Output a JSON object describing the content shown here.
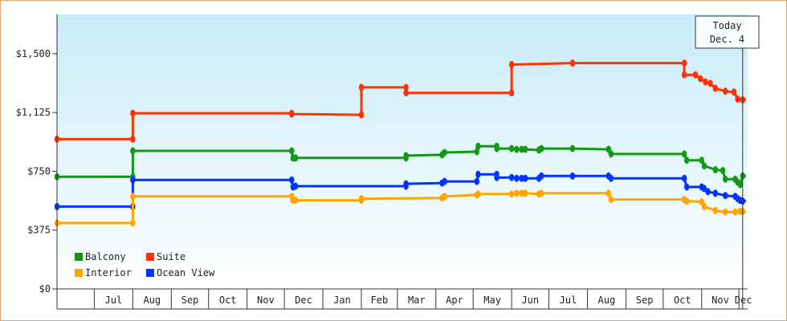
{
  "chart_data": {
    "type": "line",
    "title": "",
    "xlabel": "",
    "ylabel": "",
    "ylim": [
      0,
      1750
    ],
    "y_ticks": [
      0,
      375,
      750,
      1125,
      1500
    ],
    "y_tick_labels": [
      "$0",
      "$375",
      "$750",
      "$1,125",
      "$1,500"
    ],
    "x_range": [
      "2015-06-01",
      "2016-12-08"
    ],
    "x_ticks": [
      {
        "label": "Jul",
        "start": "2015-07-01",
        "end": "2015-08-01"
      },
      {
        "label": "Aug",
        "start": "2015-08-01",
        "end": "2015-09-01"
      },
      {
        "label": "Sep",
        "start": "2015-09-01",
        "end": "2015-10-01"
      },
      {
        "label": "Oct",
        "start": "2015-10-01",
        "end": "2015-11-01"
      },
      {
        "label": "Nov",
        "start": "2015-11-01",
        "end": "2015-12-01"
      },
      {
        "label": "Dec",
        "start": "2015-12-01",
        "end": "2016-01-01"
      },
      {
        "label": "Jan",
        "start": "2016-01-01",
        "end": "2016-02-01"
      },
      {
        "label": "Feb",
        "start": "2016-02-01",
        "end": "2016-03-01"
      },
      {
        "label": "Mar",
        "start": "2016-03-01",
        "end": "2016-04-01"
      },
      {
        "label": "Apr",
        "start": "2016-04-01",
        "end": "2016-05-01"
      },
      {
        "label": "May",
        "start": "2016-05-01",
        "end": "2016-06-01"
      },
      {
        "label": "Jun",
        "start": "2016-06-01",
        "end": "2016-07-01"
      },
      {
        "label": "Jul",
        "start": "2016-07-01",
        "end": "2016-08-01"
      },
      {
        "label": "Aug",
        "start": "2016-08-01",
        "end": "2016-09-01"
      },
      {
        "label": "Sep",
        "start": "2016-09-01",
        "end": "2016-10-01"
      },
      {
        "label": "Oct",
        "start": "2016-10-01",
        "end": "2016-11-01"
      },
      {
        "label": "Nov",
        "start": "2016-11-01",
        "end": "2016-12-01"
      },
      {
        "label": "Dec",
        "start": "2016-12-01",
        "end": "2016-12-08"
      }
    ],
    "today": {
      "date": "2016-12-04",
      "label_line1": "Today",
      "label_line2": "Dec. 4"
    },
    "forecast_end": "2016-12-08",
    "grid": false,
    "legend_position": "bottom-left",
    "colors": {
      "background_top": "#c8ecf9",
      "background_bottom": "#ffffff",
      "axis": "#333333",
      "frame": "#e3a868"
    },
    "series": [
      {
        "name": "Suite",
        "color": "#ff3300",
        "points": [
          [
            "2015-06-01",
            955
          ],
          [
            "2015-08-01",
            955
          ],
          [
            "2015-08-01",
            1120
          ],
          [
            "2015-12-07",
            1120
          ],
          [
            "2015-12-07",
            1115
          ],
          [
            "2016-02-01",
            1110
          ],
          [
            "2016-02-01",
            1285
          ],
          [
            "2016-03-08",
            1285
          ],
          [
            "2016-03-08",
            1250
          ],
          [
            "2016-06-01",
            1250
          ],
          [
            "2016-06-01",
            1430
          ],
          [
            "2016-07-20",
            1440
          ],
          [
            "2016-10-18",
            1440
          ],
          [
            "2016-10-18",
            1365
          ],
          [
            "2016-10-27",
            1365
          ],
          [
            "2016-10-31",
            1340
          ],
          [
            "2016-11-04",
            1320
          ],
          [
            "2016-11-08",
            1310
          ],
          [
            "2016-11-12",
            1280
          ],
          [
            "2016-11-20",
            1260
          ],
          [
            "2016-11-27",
            1255
          ],
          [
            "2016-11-30",
            1210
          ],
          [
            "2016-12-04",
            1205
          ]
        ],
        "forecast": 1210
      },
      {
        "name": "Balcony",
        "color": "#119911",
        "points": [
          [
            "2015-06-01",
            715
          ],
          [
            "2015-08-01",
            715
          ],
          [
            "2015-08-01",
            880
          ],
          [
            "2015-12-07",
            880
          ],
          [
            "2015-12-08",
            835
          ],
          [
            "2015-12-10",
            835
          ],
          [
            "2016-03-08",
            835
          ],
          [
            "2016-03-08",
            850
          ],
          [
            "2016-04-06",
            855
          ],
          [
            "2016-04-08",
            870
          ],
          [
            "2016-05-04",
            875
          ],
          [
            "2016-05-05",
            910
          ],
          [
            "2016-05-20",
            910
          ],
          [
            "2016-05-20",
            895
          ],
          [
            "2016-06-01",
            895
          ],
          [
            "2016-06-05",
            890
          ],
          [
            "2016-06-09",
            890
          ],
          [
            "2016-06-12",
            890
          ],
          [
            "2016-06-23",
            885
          ],
          [
            "2016-06-25",
            895
          ],
          [
            "2016-07-20",
            895
          ],
          [
            "2016-08-18",
            890
          ],
          [
            "2016-08-20",
            860
          ],
          [
            "2016-10-18",
            860
          ],
          [
            "2016-10-20",
            820
          ],
          [
            "2016-11-01",
            820
          ],
          [
            "2016-11-03",
            785
          ],
          [
            "2016-11-12",
            760
          ],
          [
            "2016-11-18",
            755
          ],
          [
            "2016-11-20",
            700
          ],
          [
            "2016-11-28",
            700
          ],
          [
            "2016-11-30",
            680
          ],
          [
            "2016-12-02",
            665
          ],
          [
            "2016-12-04",
            720
          ]
        ],
        "forecast": 720
      },
      {
        "name": "Ocean View",
        "color": "#0033ff",
        "points": [
          [
            "2015-06-01",
            525
          ],
          [
            "2015-08-01",
            525
          ],
          [
            "2015-08-01",
            695
          ],
          [
            "2015-12-07",
            695
          ],
          [
            "2015-12-08",
            650
          ],
          [
            "2015-12-10",
            655
          ],
          [
            "2016-03-08",
            655
          ],
          [
            "2016-03-08",
            670
          ],
          [
            "2016-04-06",
            675
          ],
          [
            "2016-04-08",
            685
          ],
          [
            "2016-05-04",
            685
          ],
          [
            "2016-05-05",
            730
          ],
          [
            "2016-05-20",
            730
          ],
          [
            "2016-05-20",
            710
          ],
          [
            "2016-06-01",
            710
          ],
          [
            "2016-06-05",
            705
          ],
          [
            "2016-06-09",
            705
          ],
          [
            "2016-06-12",
            705
          ],
          [
            "2016-06-23",
            705
          ],
          [
            "2016-06-25",
            720
          ],
          [
            "2016-07-20",
            720
          ],
          [
            "2016-08-18",
            720
          ],
          [
            "2016-08-20",
            705
          ],
          [
            "2016-10-18",
            705
          ],
          [
            "2016-10-20",
            650
          ],
          [
            "2016-11-01",
            650
          ],
          [
            "2016-11-03",
            640
          ],
          [
            "2016-11-06",
            620
          ],
          [
            "2016-11-12",
            610
          ],
          [
            "2016-11-20",
            595
          ],
          [
            "2016-11-28",
            590
          ],
          [
            "2016-11-30",
            575
          ],
          [
            "2016-12-02",
            565
          ],
          [
            "2016-12-04",
            560
          ]
        ],
        "forecast": 560
      },
      {
        "name": "Interior",
        "color": "#ffa500",
        "points": [
          [
            "2015-06-01",
            420
          ],
          [
            "2015-08-01",
            420
          ],
          [
            "2015-08-01",
            590
          ],
          [
            "2015-12-07",
            590
          ],
          [
            "2015-12-08",
            565
          ],
          [
            "2015-12-10",
            565
          ],
          [
            "2016-02-01",
            565
          ],
          [
            "2016-02-01",
            575
          ],
          [
            "2016-04-06",
            580
          ],
          [
            "2016-04-08",
            590
          ],
          [
            "2016-05-04",
            600
          ],
          [
            "2016-05-05",
            605
          ],
          [
            "2016-06-01",
            605
          ],
          [
            "2016-06-05",
            610
          ],
          [
            "2016-06-09",
            610
          ],
          [
            "2016-06-12",
            610
          ],
          [
            "2016-06-23",
            605
          ],
          [
            "2016-06-25",
            610
          ],
          [
            "2016-08-18",
            610
          ],
          [
            "2016-08-20",
            570
          ],
          [
            "2016-10-18",
            570
          ],
          [
            "2016-10-20",
            560
          ],
          [
            "2016-11-01",
            555
          ],
          [
            "2016-11-03",
            525
          ],
          [
            "2016-11-12",
            500
          ],
          [
            "2016-11-20",
            490
          ],
          [
            "2016-11-28",
            490
          ],
          [
            "2016-12-02",
            495
          ],
          [
            "2016-12-04",
            495
          ]
        ],
        "forecast": 490
      }
    ],
    "legend": [
      {
        "name": "Balcony",
        "color": "#119911"
      },
      {
        "name": "Suite",
        "color": "#ff3300"
      },
      {
        "name": "Interior",
        "color": "#ffa500"
      },
      {
        "name": "Ocean View",
        "color": "#0033ff"
      }
    ]
  }
}
